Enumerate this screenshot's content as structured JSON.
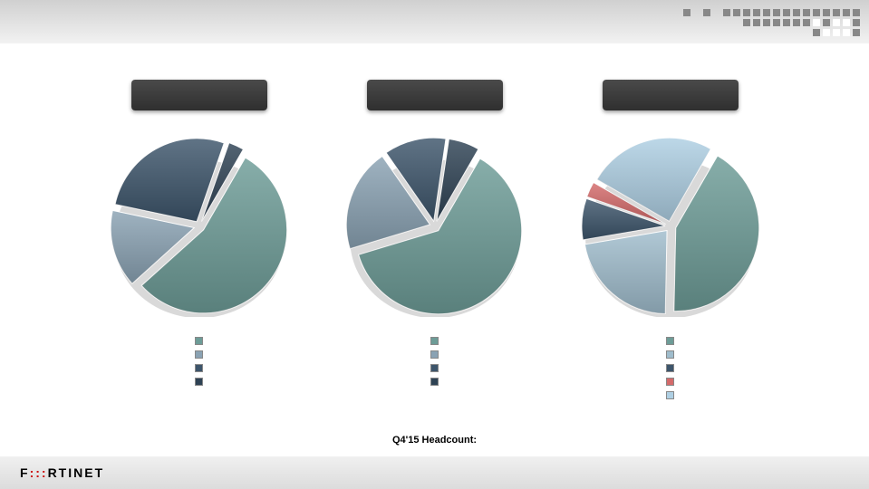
{
  "header": {
    "band_gradient_top": "#d0d0d0",
    "band_gradient_bottom": "#f2f2f2",
    "dot_rows": [
      [
        0,
        0,
        0,
        0,
        0,
        0,
        0,
        1,
        0,
        1,
        0,
        1,
        1,
        1,
        1,
        1,
        1,
        1,
        1,
        1,
        1,
        1,
        1,
        1,
        1
      ],
      [
        0,
        0,
        0,
        0,
        0,
        0,
        0,
        0,
        0,
        0,
        0,
        0,
        0,
        1,
        1,
        1,
        1,
        1,
        1,
        1,
        2,
        1,
        2,
        2,
        1
      ],
      [
        0,
        0,
        0,
        0,
        0,
        0,
        0,
        0,
        0,
        0,
        0,
        0,
        0,
        0,
        0,
        0,
        0,
        0,
        0,
        0,
        1,
        2,
        2,
        2,
        1
      ]
    ]
  },
  "colors": {
    "teal": "#6d9c97",
    "darkblue": "#3d556b",
    "slate": "#8aa2b3",
    "lightblue": "#aecfe3",
    "red": "#d46a6a",
    "title_box_top": "#4a4a4a",
    "title_box_bottom": "#2f2f2f"
  },
  "charts": [
    {
      "id": "chart-left",
      "title": "",
      "type": "pie",
      "explode_gap": 6,
      "slices": [
        {
          "label": "",
          "value": 55,
          "color": "#6d9c97"
        },
        {
          "label": "",
          "value": 15,
          "color": "#8aa2b3"
        },
        {
          "label": "",
          "value": 27,
          "color": "#3d556b"
        },
        {
          "label": "",
          "value": 3,
          "color": "#2e4254"
        }
      ],
      "legend_swatches": [
        "#6d9c97",
        "#8aa2b3",
        "#3d556b",
        "#2e4254"
      ]
    },
    {
      "id": "chart-middle",
      "title": "",
      "type": "pie",
      "explode_gap": 6,
      "slices": [
        {
          "label": "",
          "value": 62,
          "color": "#6d9c97"
        },
        {
          "label": "",
          "value": 20,
          "color": "#8aa2b3"
        },
        {
          "label": "",
          "value": 12,
          "color": "#3d556b"
        },
        {
          "label": "",
          "value": 6,
          "color": "#2e4254"
        }
      ],
      "legend_swatches": [
        "#6d9c97",
        "#8aa2b3",
        "#3d556b",
        "#2e4254"
      ]
    },
    {
      "id": "chart-right",
      "title": "",
      "type": "pie",
      "explode_gap": 6,
      "slices": [
        {
          "label": "",
          "value": 42,
          "color": "#6d9c97"
        },
        {
          "label": "",
          "value": 22,
          "color": "#9fbccc"
        },
        {
          "label": "",
          "value": 8,
          "color": "#3d556b"
        },
        {
          "label": "",
          "value": 3,
          "color": "#d46a6a"
        },
        {
          "label": "",
          "value": 25,
          "color": "#aecfe3"
        }
      ],
      "legend_swatches": [
        "#6d9c97",
        "#9fbccc",
        "#3d556b",
        "#d46a6a",
        "#aecfe3"
      ]
    }
  ],
  "bottom_label": "Q4'15 Headcount:",
  "footer": {
    "brand_pre": "F",
    "brand_red": ":::",
    "brand_post": "RTINET",
    "background_top": "#f0f0f0",
    "background_bottom": "#dcdcdc"
  }
}
